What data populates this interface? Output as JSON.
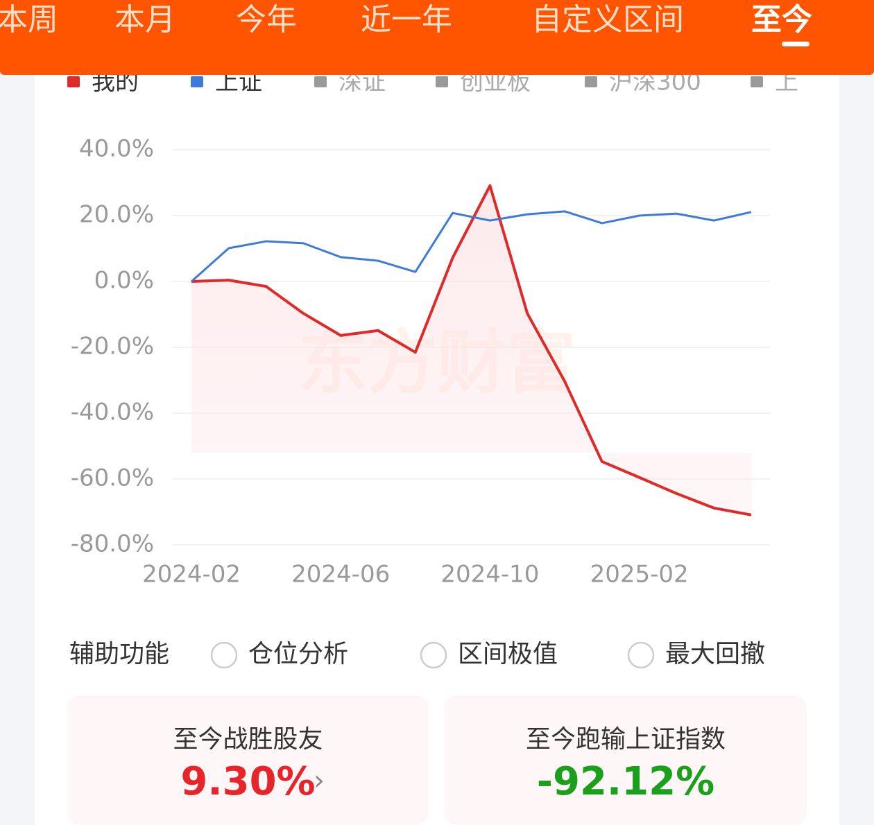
{
  "header": {
    "tabs": [
      "本周",
      "本月",
      "今年",
      "近一年",
      "自定义区间",
      "至今"
    ],
    "active_tab": 5
  },
  "chart_data": {
    "type": "line",
    "categories": [
      "2024-02",
      null,
      null,
      null,
      "2024-06",
      null,
      null,
      null,
      "2024-10",
      null,
      null,
      null,
      "2025-02",
      null,
      null,
      null
    ],
    "series": [
      {
        "name": "我的",
        "color": "#e02a2a",
        "area": true,
        "values": [
          0,
          0.4,
          -1.5,
          -9.7,
          -16.4,
          -14.9,
          -21.5,
          7.2,
          29.1,
          -9.7,
          -30.3,
          -54.7,
          -59.5,
          -64.4,
          -68.8,
          -70.9
        ]
      },
      {
        "name": "上证",
        "color": "#3d7bd6",
        "values": [
          0,
          10.1,
          12.2,
          11.6,
          7.4,
          6.3,
          2.9,
          20.8,
          18.5,
          20.4,
          21.3,
          17.7,
          20.0,
          20.6,
          18.5,
          21.1
        ]
      }
    ],
    "inactive_legend": [
      {
        "name": "深证",
        "color": "#9a9a9a"
      },
      {
        "name": "创业板",
        "color": "#9a9a9a"
      },
      {
        "name": "沪深300",
        "color": "#9a9a9a"
      },
      {
        "name": "上",
        "color": "#9a9a9a"
      }
    ],
    "ylim": [
      -80,
      40
    ],
    "yticks": [
      {
        "value": 40,
        "label": "40.0%"
      },
      {
        "value": 20,
        "label": "20.0%"
      },
      {
        "value": 0,
        "label": "0.0%"
      },
      {
        "value": -20,
        "label": "-20.0%"
      },
      {
        "value": -40,
        "label": "-40.0%"
      },
      {
        "value": -60,
        "label": "-60.0%"
      },
      {
        "value": -80,
        "label": "-80.0%"
      }
    ],
    "grid": true,
    "watermark": "东方财富"
  },
  "tools": {
    "label": "辅助功能",
    "options": [
      "仓位分析",
      "区间极值",
      "最大回撤"
    ]
  },
  "cards": [
    {
      "title": "至今战胜股友",
      "value": "9.30%",
      "color": "#e8242b"
    },
    {
      "title": "至今跑输上证指数",
      "value": "-92.12%",
      "color": "#1aa01a"
    }
  ]
}
